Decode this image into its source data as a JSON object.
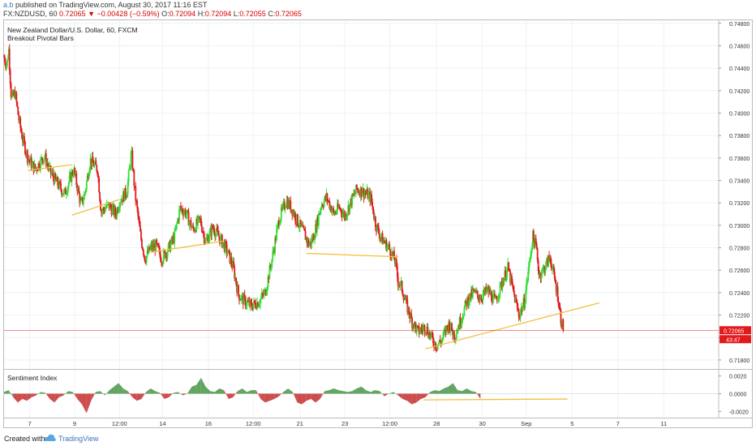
{
  "header": {
    "author": "a.b",
    "published": "published on TradingView.com, August 30, 2017 11:16 EST",
    "symbol": "FX:NZDUSD, 60",
    "last": "0.72065",
    "change": "−0.00428 (−0.59%)",
    "open_label": "O:",
    "open": "0.72094",
    "high_label": "H:",
    "high": "0.72094",
    "low_label": "L:",
    "low": "0.72055",
    "close_label": "C:",
    "close": "0.72065"
  },
  "legend": {
    "line1": "New Zealand Dollar/U.S. Dollar, 60, FXCM",
    "line2": "Breakout Pivotal Bars"
  },
  "indicator": {
    "title": "Sentiment Index"
  },
  "footer": {
    "created": "Created with",
    "brand": "TradingView"
  },
  "colors": {
    "up": "#33dd33",
    "down": "#e31a1c",
    "trendline": "#f0c040",
    "price_line": "#e31a1c",
    "accent": "#3a74b8"
  },
  "chart_data": [
    {
      "type": "candlestick",
      "ylim": [
        0.7172,
        0.7482
      ],
      "ytick_values": [
        0.748,
        0.746,
        0.744,
        0.742,
        0.74,
        0.738,
        0.736,
        0.734,
        0.732,
        0.73,
        0.728,
        0.726,
        0.724,
        0.722,
        0.72,
        0.718
      ],
      "ytick_labels": [
        "0.74800",
        "0.74600",
        "0.74400",
        "0.74200",
        "0.74000",
        "0.73800",
        "0.73600",
        "0.73400",
        "0.73200",
        "0.73000",
        "0.72800",
        "0.72600",
        "0.72400",
        "0.72200",
        "0.72000",
        "0.71800"
      ],
      "last_price": 0.72065,
      "last_price_label": "0.72065",
      "countdown_label": "43:47",
      "path": [
        [
          0,
          0.745
        ],
        [
          0.03,
          0.7442
        ],
        [
          0.05,
          0.7458
        ],
        [
          0.08,
          0.7412
        ],
        [
          0.12,
          0.7418
        ],
        [
          0.16,
          0.7395
        ],
        [
          0.2,
          0.7378
        ],
        [
          0.26,
          0.736
        ],
        [
          0.34,
          0.735
        ],
        [
          0.44,
          0.7362
        ],
        [
          0.5,
          0.7348
        ],
        [
          0.56,
          0.734
        ],
        [
          0.66,
          0.7328
        ],
        [
          0.76,
          0.735
        ],
        [
          0.84,
          0.7318
        ],
        [
          0.88,
          0.7328
        ],
        [
          0.94,
          0.7358
        ],
        [
          1.02,
          0.735
        ],
        [
          1.06,
          0.7312
        ],
        [
          1.14,
          0.7318
        ],
        [
          1.22,
          0.731
        ],
        [
          1.26,
          0.7322
        ],
        [
          1.34,
          0.733
        ],
        [
          1.39,
          0.7365
        ],
        [
          1.43,
          0.7328
        ],
        [
          1.49,
          0.729
        ],
        [
          1.54,
          0.727
        ],
        [
          1.6,
          0.728
        ],
        [
          1.66,
          0.7282
        ],
        [
          1.72,
          0.727
        ],
        [
          1.8,
          0.728
        ],
        [
          1.86,
          0.729
        ],
        [
          1.92,
          0.7315
        ],
        [
          1.98,
          0.7312
        ],
        [
          2.06,
          0.7296
        ],
        [
          2.14,
          0.7305
        ],
        [
          2.2,
          0.7285
        ],
        [
          2.28,
          0.7298
        ],
        [
          2.36,
          0.7288
        ],
        [
          2.43,
          0.7278
        ],
        [
          2.5,
          0.7263
        ],
        [
          2.56,
          0.7238
        ],
        [
          2.63,
          0.7232
        ],
        [
          2.7,
          0.7228
        ],
        [
          2.78,
          0.7232
        ],
        [
          2.85,
          0.724
        ],
        [
          2.92,
          0.7268
        ],
        [
          3.0,
          0.7305
        ],
        [
          3.08,
          0.7322
        ],
        [
          3.14,
          0.7315
        ],
        [
          3.2,
          0.7304
        ],
        [
          3.28,
          0.7292
        ],
        [
          3.33,
          0.7282
        ],
        [
          3.38,
          0.729
        ],
        [
          3.46,
          0.7318
        ],
        [
          3.52,
          0.7325
        ],
        [
          3.6,
          0.731
        ],
        [
          3.66,
          0.7316
        ],
        [
          3.72,
          0.7308
        ],
        [
          3.78,
          0.732
        ],
        [
          3.85,
          0.7332
        ],
        [
          3.92,
          0.733
        ],
        [
          4.0,
          0.7325
        ],
        [
          4.06,
          0.73
        ],
        [
          4.12,
          0.7288
        ],
        [
          4.2,
          0.728
        ],
        [
          4.27,
          0.7268
        ],
        [
          4.3,
          0.725
        ],
        [
          4.34,
          0.7245
        ],
        [
          4.38,
          0.7232
        ],
        [
          4.45,
          0.7215
        ],
        [
          4.52,
          0.7205
        ],
        [
          4.6,
          0.721
        ],
        [
          4.66,
          0.72
        ],
        [
          4.72,
          0.7193
        ],
        [
          4.78,
          0.7198
        ],
        [
          4.85,
          0.7212
        ],
        [
          4.92,
          0.7202
        ],
        [
          4.98,
          0.7215
        ],
        [
          5.05,
          0.7232
        ],
        [
          5.12,
          0.724
        ],
        [
          5.2,
          0.7236
        ],
        [
          5.28,
          0.7242
        ],
        [
          5.36,
          0.7232
        ],
        [
          5.44,
          0.725
        ],
        [
          5.5,
          0.7262
        ],
        [
          5.56,
          0.724
        ],
        [
          5.62,
          0.722
        ],
        [
          5.68,
          0.7232
        ],
        [
          5.72,
          0.7258
        ],
        [
          5.77,
          0.729
        ],
        [
          5.81,
          0.728
        ],
        [
          5.84,
          0.7256
        ],
        [
          5.9,
          0.7262
        ],
        [
          5.96,
          0.7272
        ],
        [
          6.0,
          0.7255
        ],
        [
          6.04,
          0.724
        ],
        [
          6.08,
          0.7215
        ],
        [
          6.11,
          0.72065
        ]
      ],
      "trendlines": [
        {
          "x1": 0.26,
          "y1": 0.7349,
          "x2": 0.74,
          "y2": 0.7354
        },
        {
          "x1": 0.74,
          "y1": 0.7309,
          "x2": 1.26,
          "y2": 0.7323
        },
        {
          "x1": 1.6,
          "y1": 0.7276,
          "x2": 2.4,
          "y2": 0.7286
        },
        {
          "x1": 3.3,
          "y1": 0.7275,
          "x2": 4.3,
          "y2": 0.7272
        },
        {
          "x1": 4.6,
          "y1": 0.719,
          "x2": 6.5,
          "y2": 0.7231
        }
      ],
      "xticks": [
        {
          "x": 0.28,
          "label": "7"
        },
        {
          "x": 0.77,
          "label": "9"
        },
        {
          "x": 1.26,
          "label": "12:00"
        },
        {
          "x": 1.73,
          "label": "14"
        },
        {
          "x": 2.23,
          "label": "16"
        },
        {
          "x": 2.72,
          "label": "12:00"
        },
        {
          "x": 3.23,
          "label": "21"
        },
        {
          "x": 3.72,
          "label": "23"
        },
        {
          "x": 4.21,
          "label": "12:00"
        },
        {
          "x": 4.72,
          "label": "28"
        },
        {
          "x": 5.22,
          "label": "30"
        },
        {
          "x": 5.7,
          "label": "Sep"
        },
        {
          "x": 6.2,
          "label": "5"
        },
        {
          "x": 6.7,
          "label": "7"
        },
        {
          "x": 7.2,
          "label": "11"
        }
      ],
      "xlim": [
        0,
        7.8
      ]
    },
    {
      "type": "area",
      "title": "Sentiment Index",
      "ylim": [
        -0.0027,
        0.0027
      ],
      "ytick_values": [
        0.002,
        0.0,
        -0.002
      ],
      "ytick_labels": [
        "0.0020",
        "0.0000",
        "-0.0020"
      ],
      "x": [
        0,
        0.05,
        0.1,
        0.15,
        0.2,
        0.25,
        0.3,
        0.35,
        0.4,
        0.45,
        0.5,
        0.55,
        0.6,
        0.65,
        0.7,
        0.75,
        0.8,
        0.85,
        0.9,
        0.95,
        1.0,
        1.05,
        1.1,
        1.15,
        1.2,
        1.25,
        1.3,
        1.35,
        1.4,
        1.45,
        1.5,
        1.55,
        1.6,
        1.65,
        1.7,
        1.75,
        1.8,
        1.85,
        1.9,
        1.95,
        2.0,
        2.05,
        2.1,
        2.15,
        2.2,
        2.25,
        2.3,
        2.35,
        2.4,
        2.45,
        2.5,
        2.55,
        2.6,
        2.65,
        2.7,
        2.75,
        2.8,
        2.85,
        2.9,
        2.95,
        3.0,
        3.05,
        3.1,
        3.15,
        3.2,
        3.25,
        3.3,
        3.35,
        3.4,
        3.45,
        3.5,
        3.55,
        3.6,
        3.65,
        3.7,
        3.75,
        3.8,
        3.85,
        3.9,
        3.95,
        4.0,
        4.05,
        4.1,
        4.15,
        4.2,
        4.25,
        4.3,
        4.35,
        4.4,
        4.45,
        4.5,
        4.55,
        4.6,
        4.65,
        4.7,
        4.75,
        4.8,
        4.85,
        4.9,
        4.95,
        5.0,
        5.05,
        5.1,
        5.15,
        5.2
      ],
      "values": [
        0.0002,
        0.0004,
        -0.0004,
        -0.001,
        -0.0006,
        -0.0008,
        -0.0004,
        -0.0002,
        0.0002,
        0.0001,
        -0.0006,
        -0.001,
        -0.0004,
        -0.0002,
        0.0003,
        0.0002,
        -0.0006,
        -0.0012,
        -0.0022,
        -0.0008,
        0.0002,
        0.0003,
        -0.0002,
        0.0004,
        0.0008,
        0.0012,
        0.0006,
        0.0003,
        -0.0004,
        -0.0008,
        -0.0006,
        0.0002,
        0.0006,
        0.0003,
        0.0001,
        -0.0006,
        -0.0004,
        0.0001,
        0.0002,
        -0.0002,
        0.0,
        0.0008,
        0.001,
        0.0018,
        0.0008,
        0.0003,
        0.0002,
        0.0006,
        0.0004,
        -0.0006,
        -0.0004,
        0.0003,
        0.0006,
        0.0002,
        0.0004,
        0.0004,
        -0.0006,
        -0.001,
        -0.0008,
        -0.0006,
        -0.0003,
        0.0002,
        0.0006,
        0.0002,
        -0.001,
        -0.0012,
        -0.0008,
        -0.0006,
        -0.001,
        -0.0006,
        0.0003,
        0.0004,
        0.0006,
        0.0004,
        0.0003,
        0.0002,
        0.0003,
        0.0006,
        0.0008,
        0.0004,
        0.0002,
        0.0004,
        0.0003,
        -0.0003,
        0.0,
        0.0002,
        -0.0002,
        -0.0006,
        -0.0008,
        -0.0012,
        -0.001,
        -0.0006,
        -0.0004,
        0.0002,
        0.0004,
        0.0003,
        0.0006,
        0.0008,
        0.0012,
        0.0004,
        0.0003,
        0.0006,
        0.0003,
        0.0002,
        -0.0006
      ],
      "trendlines": [
        {
          "x1": 4.58,
          "y1": -0.0007,
          "x2": 6.15,
          "y2": -0.0006
        }
      ]
    }
  ]
}
